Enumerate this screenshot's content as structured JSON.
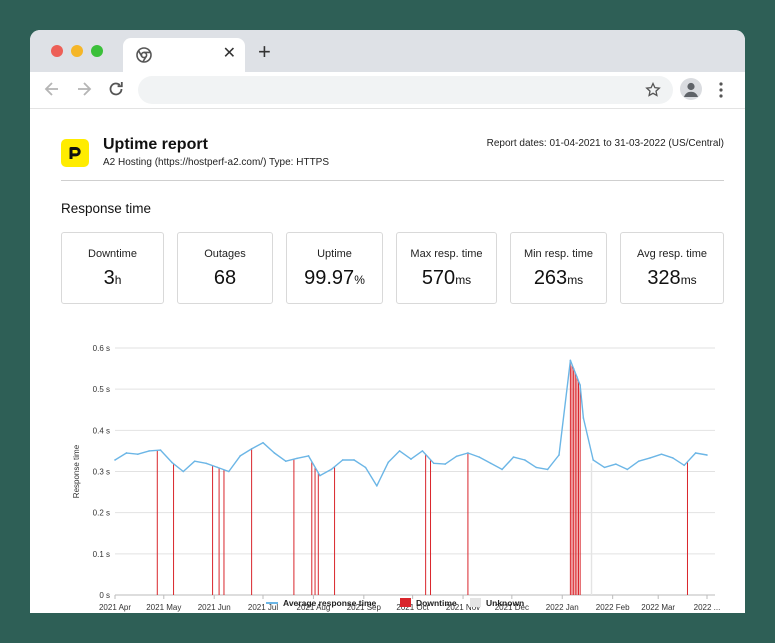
{
  "browser": {
    "tab_close": "✕",
    "new_tab": "+"
  },
  "report": {
    "title": "Uptime report",
    "subtitle": "A2 Hosting (https://hostperf-a2.com/) Type: HTTPS",
    "dates": "Report dates: 01-04-2021 to 31-03-2022 (US/Central)",
    "section_title": "Response time"
  },
  "stats": [
    {
      "label": "Downtime",
      "value": "3",
      "unit": "h"
    },
    {
      "label": "Outages",
      "value": "68",
      "unit": ""
    },
    {
      "label": "Uptime",
      "value": "99.97",
      "unit": "%"
    },
    {
      "label": "Max resp. time",
      "value": "570",
      "unit": "ms"
    },
    {
      "label": "Min resp. time",
      "value": "263",
      "unit": "ms"
    },
    {
      "label": "Avg resp. time",
      "value": "328",
      "unit": "ms"
    }
  ],
  "colors": {
    "line": "#6cb6e6",
    "downtime": "#d9252b",
    "unknown": "#e4e4e4",
    "logo": "#ffec00"
  },
  "chart_data": {
    "type": "line",
    "ylabel": "Response time",
    "ylim": [
      0,
      0.6
    ],
    "y_ticks": [
      "0 s",
      "0.1 s",
      "0.2 s",
      "0.3 s",
      "0.4 s",
      "0.5 s",
      "0.6 s"
    ],
    "x_ticks": [
      "2021 Apr",
      "2021 May",
      "2021 Jun",
      "2021 Jul",
      "2021 Aug",
      "2021 Sep",
      "2021 Oct",
      "2021 Nov",
      "2021 Dec",
      "2022 Jan",
      "2022 Feb",
      "2022 Mar",
      "2022 ..."
    ],
    "grid": true,
    "legend_position": "bottom",
    "series": [
      {
        "name": "Average response time",
        "x": [
          "2021-04-01",
          "2021-04-08",
          "2021-04-15",
          "2021-04-22",
          "2021-04-29",
          "2021-05-06",
          "2021-05-13",
          "2021-05-20",
          "2021-05-27",
          "2021-06-03",
          "2021-06-10",
          "2021-06-17",
          "2021-06-24",
          "2021-07-01",
          "2021-07-08",
          "2021-07-15",
          "2021-07-22",
          "2021-07-29",
          "2021-08-05",
          "2021-08-12",
          "2021-08-19",
          "2021-08-26",
          "2021-09-02",
          "2021-09-09",
          "2021-09-16",
          "2021-09-23",
          "2021-09-30",
          "2021-10-07",
          "2021-10-14",
          "2021-10-21",
          "2021-10-28",
          "2021-11-04",
          "2021-11-11",
          "2021-11-18",
          "2021-11-25",
          "2021-12-02",
          "2021-12-09",
          "2021-12-16",
          "2021-12-23",
          "2021-12-30",
          "2022-01-06",
          "2022-01-08",
          "2022-01-10",
          "2022-01-12",
          "2022-01-14",
          "2022-01-20",
          "2022-01-27",
          "2022-02-03",
          "2022-02-10",
          "2022-02-17",
          "2022-02-24",
          "2022-03-03",
          "2022-03-10",
          "2022-03-17",
          "2022-03-24",
          "2022-03-31"
        ],
        "y": [
          0.328,
          0.345,
          0.342,
          0.35,
          0.352,
          0.322,
          0.3,
          0.325,
          0.32,
          0.31,
          0.3,
          0.338,
          0.355,
          0.37,
          0.345,
          0.325,
          0.332,
          0.338,
          0.29,
          0.305,
          0.328,
          0.328,
          0.31,
          0.265,
          0.322,
          0.35,
          0.33,
          0.35,
          0.32,
          0.318,
          0.337,
          0.345,
          0.335,
          0.32,
          0.305,
          0.335,
          0.328,
          0.31,
          0.305,
          0.34,
          0.57,
          0.55,
          0.53,
          0.51,
          0.43,
          0.328,
          0.31,
          0.318,
          0.305,
          0.325,
          0.333,
          0.342,
          0.333,
          0.315,
          0.345,
          0.34
        ]
      }
    ],
    "downtime": [
      "2021-04-27",
      "2021-05-07",
      "2021-05-31",
      "2021-06-04",
      "2021-06-07",
      "2021-06-24",
      "2021-07-20",
      "2021-07-31",
      "2021-08-02",
      "2021-08-04",
      "2021-08-14",
      "2021-10-09",
      "2021-10-12",
      "2021-11-04",
      "2022-01-06",
      "2022-01-07",
      "2022-01-08",
      "2022-01-09",
      "2022-01-10",
      "2022-01-11",
      "2022-01-12",
      "2022-03-19"
    ],
    "unknown": [
      "2022-01-19"
    ],
    "legend": [
      {
        "name": "Average response time",
        "kind": "line"
      },
      {
        "name": "Downtime",
        "kind": "box"
      },
      {
        "name": "Unknown",
        "kind": "box"
      }
    ]
  }
}
